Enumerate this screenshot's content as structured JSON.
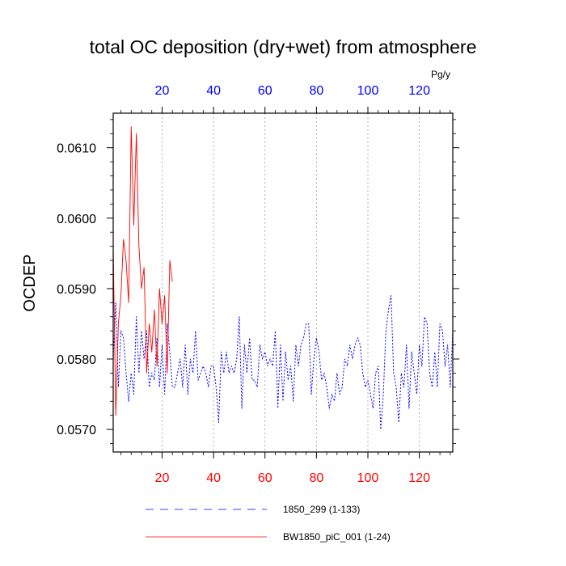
{
  "chart_data": {
    "type": "line",
    "title": "total OC deposition (dry+wet) from atmosphere",
    "ylabel": "OCDEP",
    "xlabel": "",
    "units": "Pg/y",
    "xlim": [
      1,
      133
    ],
    "ylim": [
      0.05668,
      0.06149
    ],
    "yticks": [
      0.057,
      0.058,
      0.059,
      0.06,
      0.061
    ],
    "ytick_labels": [
      "0.0570",
      "0.0580",
      "0.0590",
      "0.0600",
      "0.0610"
    ],
    "xticks_bottom": [
      20,
      40,
      60,
      80,
      100,
      120
    ],
    "xticks_top": [
      20,
      40,
      60,
      80,
      100,
      120
    ],
    "bottom_tick_color": "#ff0000",
    "top_tick_color": "#0000ff",
    "grid": "vertical-dotted",
    "series": [
      {
        "name": "1850_299 (1-133)",
        "legend_label": "1850_299 (1-133)",
        "color": "#0000ff",
        "dash": "dotted",
        "x": [
          1,
          2,
          3,
          4,
          5,
          6,
          7,
          8,
          9,
          10,
          11,
          12,
          13,
          14,
          15,
          16,
          17,
          18,
          19,
          20,
          21,
          22,
          23,
          24,
          25,
          26,
          27,
          28,
          29,
          30,
          31,
          32,
          33,
          34,
          35,
          36,
          37,
          38,
          39,
          40,
          41,
          42,
          43,
          44,
          45,
          46,
          47,
          48,
          49,
          50,
          51,
          52,
          53,
          54,
          55,
          56,
          57,
          58,
          59,
          60,
          61,
          62,
          63,
          64,
          65,
          66,
          67,
          68,
          69,
          70,
          71,
          72,
          73,
          74,
          75,
          76,
          77,
          78,
          79,
          80,
          81,
          82,
          83,
          84,
          85,
          86,
          87,
          88,
          89,
          90,
          91,
          92,
          93,
          94,
          95,
          96,
          97,
          98,
          99,
          100,
          101,
          102,
          103,
          104,
          105,
          106,
          107,
          108,
          109,
          110,
          111,
          112,
          113,
          114,
          115,
          116,
          117,
          118,
          119,
          120,
          121,
          122,
          123,
          124,
          125,
          126,
          127,
          128,
          129,
          130,
          131,
          132,
          133
        ],
        "values": [
          0.058,
          0.0588,
          0.0576,
          0.0584,
          0.0583,
          0.0578,
          0.0574,
          0.0578,
          0.0575,
          0.0586,
          0.0578,
          0.0584,
          0.058,
          0.0584,
          0.0576,
          0.0578,
          0.0577,
          0.0583,
          0.0576,
          0.0582,
          0.0575,
          0.0585,
          0.0581,
          0.0576,
          0.0576,
          0.0578,
          0.058,
          0.0576,
          0.0582,
          0.0575,
          0.058,
          0.0578,
          0.0584,
          0.0577,
          0.0578,
          0.0579,
          0.0578,
          0.0576,
          0.0579,
          0.0579,
          0.0576,
          0.0571,
          0.0581,
          0.0578,
          0.0581,
          0.0578,
          0.0579,
          0.0578,
          0.058,
          0.0586,
          0.0573,
          0.0582,
          0.0578,
          0.0583,
          0.0577,
          0.0577,
          0.0576,
          0.0582,
          0.058,
          0.0581,
          0.0579,
          0.058,
          0.0579,
          0.0584,
          0.0573,
          0.0582,
          0.0574,
          0.0581,
          0.0577,
          0.0579,
          0.0574,
          0.0582,
          0.0579,
          0.0582,
          0.0583,
          0.0585,
          0.0585,
          0.0575,
          0.058,
          0.0583,
          0.0581,
          0.0577,
          0.0578,
          0.0576,
          0.0573,
          0.0575,
          0.0574,
          0.0578,
          0.0575,
          0.0576,
          0.058,
          0.0579,
          0.0582,
          0.058,
          0.0582,
          0.0583,
          0.0582,
          0.0578,
          0.0576,
          0.0577,
          0.0575,
          0.0573,
          0.0578,
          0.0579,
          0.057,
          0.0575,
          0.0584,
          0.0587,
          0.0589,
          0.0578,
          0.0576,
          0.0571,
          0.0578,
          0.0576,
          0.0582,
          0.0573,
          0.0581,
          0.0578,
          0.0575,
          0.0582,
          0.0579,
          0.0586,
          0.0585,
          0.0578,
          0.0576,
          0.0581,
          0.0576,
          0.0585,
          0.0584,
          0.0579,
          0.0582,
          0.0576,
          0.0584
        ]
      },
      {
        "name": "BW1850_piC_001 (1-24)",
        "legend_label": "BW1850_piC_001 (1-24)",
        "color": "#ff0000",
        "dash": "solid",
        "x": [
          1,
          2,
          3,
          4,
          5,
          6,
          7,
          8,
          9,
          10,
          11,
          12,
          13,
          14,
          15,
          16,
          17,
          18,
          19,
          20,
          21,
          22,
          23,
          24
        ],
        "values": [
          0.0596,
          0.0572,
          0.0585,
          0.0589,
          0.0597,
          0.0594,
          0.0588,
          0.0613,
          0.0599,
          0.0612,
          0.0596,
          0.059,
          0.0593,
          0.0578,
          0.0585,
          0.0581,
          0.0587,
          0.0579,
          0.059,
          0.0585,
          0.0589,
          0.0578,
          0.0594,
          0.0591
        ]
      }
    ]
  }
}
